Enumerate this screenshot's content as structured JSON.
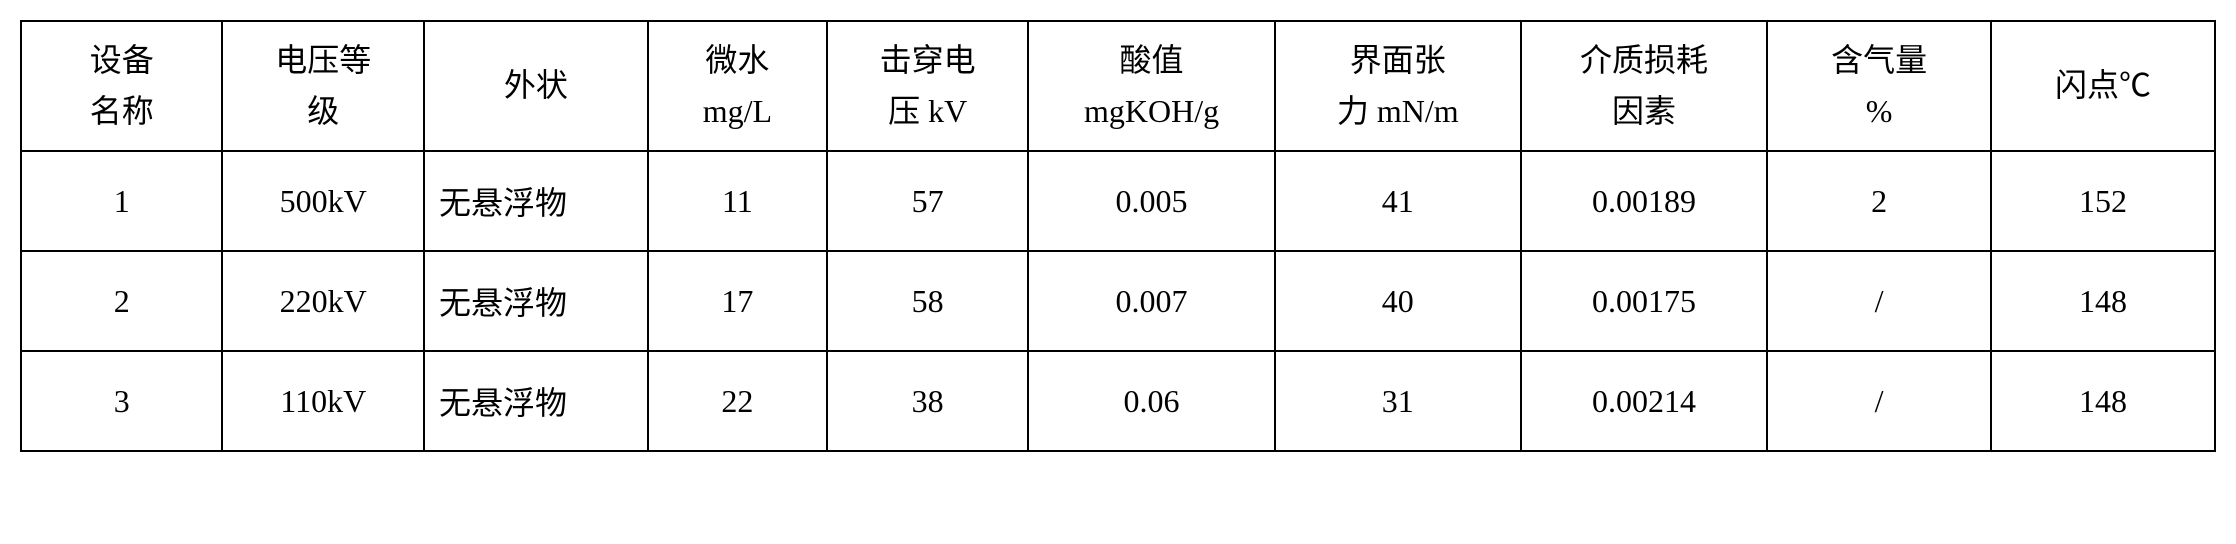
{
  "table": {
    "type": "table",
    "background_color": "#ffffff",
    "border_color": "#000000",
    "border_width": 2,
    "text_color": "#000000",
    "font_family": "SimSun",
    "header_fontsize": 32,
    "cell_fontsize": 32,
    "columns": [
      {
        "label": "设备\n名称",
        "width": "9%",
        "align": "center"
      },
      {
        "label": "电压等\n级",
        "width": "9%",
        "align": "center"
      },
      {
        "label": "外状",
        "width": "10%",
        "align": "center"
      },
      {
        "label": "微水\nmg/L",
        "width": "8%",
        "align": "center"
      },
      {
        "label": "击穿电\n压 kV",
        "width": "9%",
        "align": "center"
      },
      {
        "label": "酸值\nmgKOH/g",
        "width": "11%",
        "align": "center"
      },
      {
        "label": "界面张\n力 mN/m",
        "width": "11%",
        "align": "center"
      },
      {
        "label": "介质损耗\n因素",
        "width": "11%",
        "align": "center"
      },
      {
        "label": "含气量\n%",
        "width": "10%",
        "align": "center"
      },
      {
        "label": "闪点℃",
        "width": "10%",
        "align": "center"
      }
    ],
    "rows": [
      [
        "1",
        "500kV",
        "无悬浮物",
        "11",
        "57",
        "0.005",
        "41",
        "0.00189",
        "2",
        "152"
      ],
      [
        "2",
        "220kV",
        "无悬浮物",
        "17",
        "58",
        "0.007",
        "40",
        "0.00175",
        "/",
        "148"
      ],
      [
        "3",
        "110kV",
        "无悬浮物",
        "22",
        "38",
        "0.06",
        "31",
        "0.00214",
        "/",
        "148"
      ]
    ],
    "row_cell_align": [
      "center",
      "center",
      "left",
      "center",
      "center",
      "center",
      "center",
      "center",
      "center",
      "center"
    ]
  }
}
